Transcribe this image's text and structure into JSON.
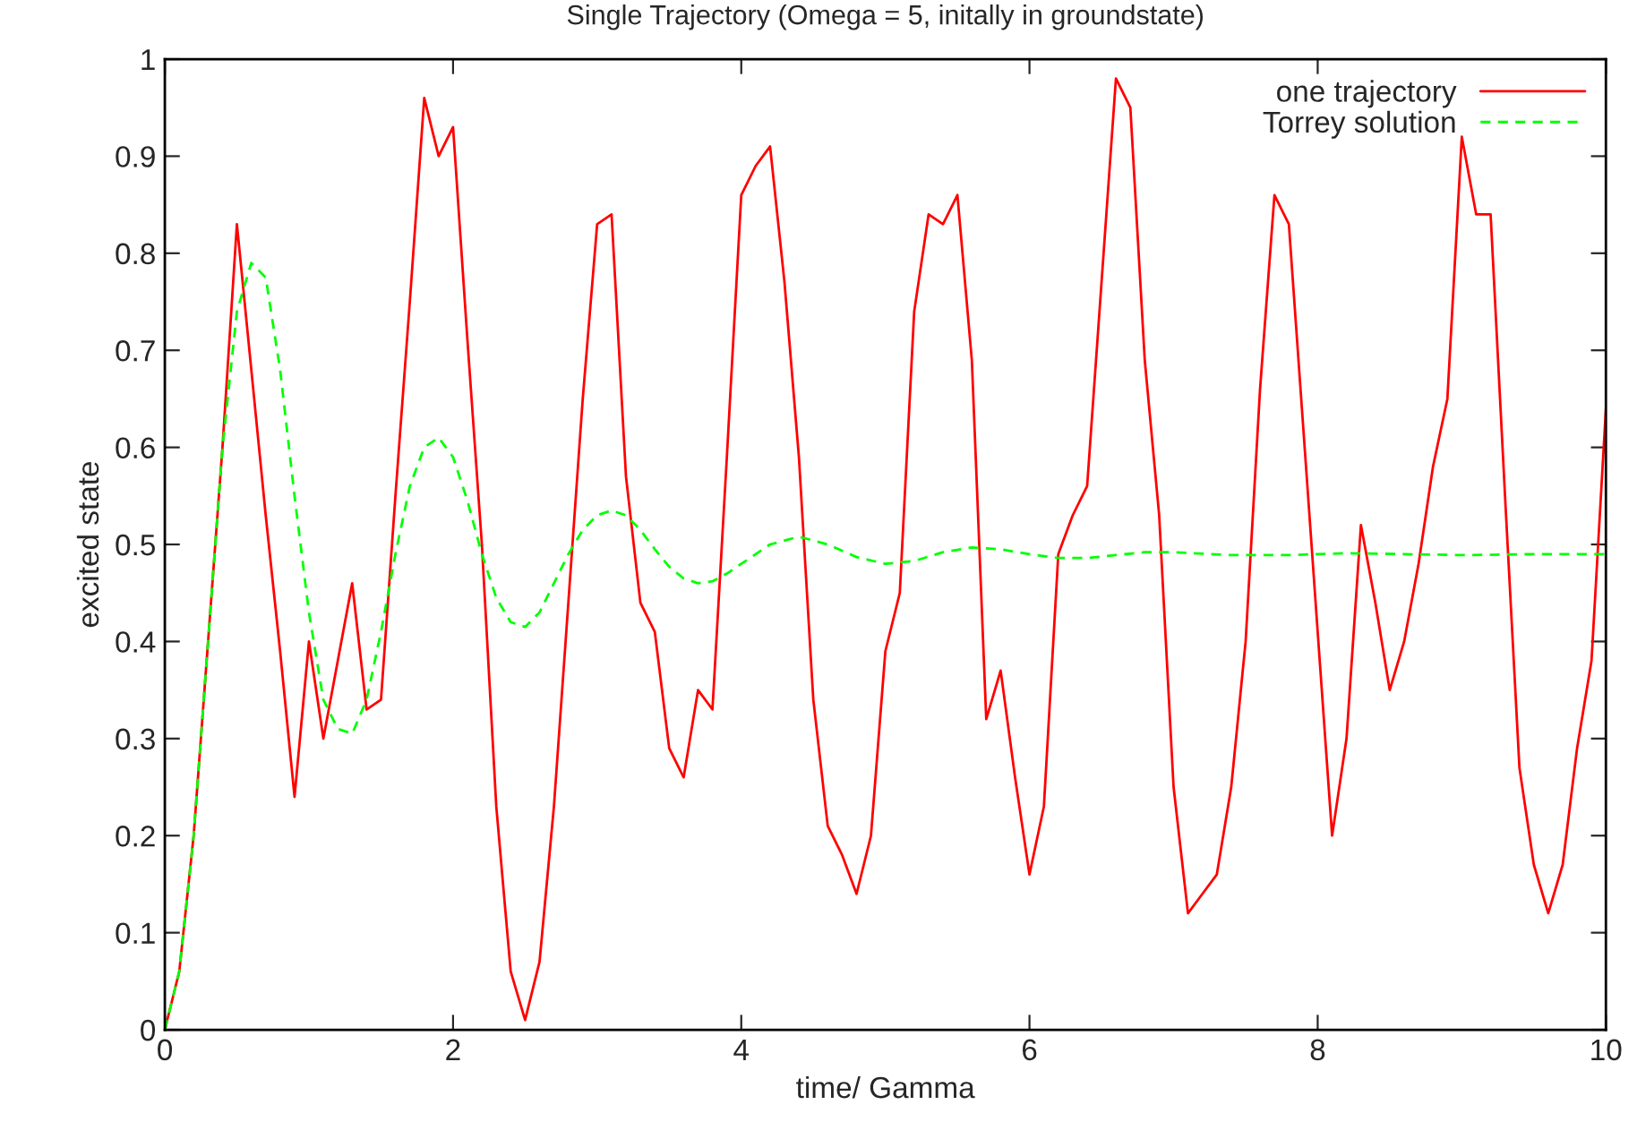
{
  "chart_data": {
    "type": "line",
    "title": "Single Trajectory (Omega = 5, initally in groundstate)",
    "xlabel": "time/ Gamma",
    "ylabel": "excited state",
    "xlim": [
      0,
      10
    ],
    "ylim": [
      0,
      1
    ],
    "xticks": [
      0,
      2,
      4,
      6,
      8,
      10
    ],
    "yticks": [
      0,
      0.1,
      0.2,
      0.3,
      0.4,
      0.5,
      0.6,
      0.7,
      0.8,
      0.9,
      1
    ],
    "legend": "top right",
    "grid": false,
    "series": [
      {
        "name": "one trajectory",
        "color": "#ff0000",
        "line_style": "solid",
        "x": [
          0,
          0.1,
          0.2,
          0.3,
          0.4,
          0.5,
          0.6,
          0.7,
          0.8,
          0.9,
          1.0,
          1.1,
          1.2,
          1.3,
          1.4,
          1.5,
          1.6,
          1.7,
          1.8,
          1.9,
          2.0,
          2.1,
          2.2,
          2.3,
          2.4,
          2.5,
          2.6,
          2.7,
          2.8,
          2.9,
          3.0,
          3.1,
          3.2,
          3.3,
          3.4,
          3.5,
          3.6,
          3.7,
          3.8,
          3.9,
          4.0,
          4.1,
          4.2,
          4.3,
          4.4,
          4.5,
          4.6,
          4.7,
          4.8,
          4.9,
          5.0,
          5.1,
          5.2,
          5.3,
          5.4,
          5.5,
          5.6,
          5.7,
          5.8,
          5.9,
          6.0,
          6.1,
          6.2,
          6.3,
          6.4,
          6.5,
          6.6,
          6.7,
          6.8,
          6.9,
          7.0,
          7.1,
          7.2,
          7.3,
          7.4,
          7.5,
          7.6,
          7.7,
          7.8,
          7.9,
          8.0,
          8.1,
          8.2,
          8.3,
          8.4,
          8.5,
          8.6,
          8.7,
          8.8,
          8.9,
          9.0,
          9.1,
          9.2,
          9.3,
          9.4,
          9.5,
          9.6,
          9.7,
          9.8,
          9.9,
          10.0
        ],
        "values": [
          0,
          0.06,
          0.2,
          0.4,
          0.6,
          0.83,
          0.68,
          0.53,
          0.39,
          0.24,
          0.4,
          0.3,
          0.38,
          0.46,
          0.33,
          0.34,
          0.55,
          0.75,
          0.96,
          0.9,
          0.93,
          0.71,
          0.5,
          0.23,
          0.06,
          0.01,
          0.07,
          0.23,
          0.44,
          0.65,
          0.83,
          0.84,
          0.57,
          0.44,
          0.41,
          0.29,
          0.26,
          0.35,
          0.33,
          0.59,
          0.86,
          0.89,
          0.91,
          0.77,
          0.59,
          0.34,
          0.21,
          0.18,
          0.14,
          0.2,
          0.39,
          0.45,
          0.74,
          0.84,
          0.83,
          0.86,
          0.69,
          0.32,
          0.37,
          0.26,
          0.16,
          0.23,
          0.49,
          0.53,
          0.56,
          0.77,
          0.98,
          0.95,
          0.69,
          0.53,
          0.25,
          0.12,
          0.14,
          0.16,
          0.25,
          0.4,
          0.66,
          0.86,
          0.83,
          0.62,
          0.41,
          0.2,
          0.3,
          0.52,
          0.44,
          0.35,
          0.4,
          0.48,
          0.58,
          0.65,
          0.92,
          0.84,
          0.84,
          0.55,
          0.27,
          0.17,
          0.12,
          0.17,
          0.29,
          0.38,
          0.64
        ]
      },
      {
        "name": "Torrey solution",
        "color": "#00ff00",
        "line_style": "dashed",
        "x": [
          0,
          0.1,
          0.2,
          0.3,
          0.4,
          0.5,
          0.6,
          0.7,
          0.8,
          0.9,
          1.0,
          1.1,
          1.2,
          1.3,
          1.4,
          1.5,
          1.6,
          1.7,
          1.8,
          1.9,
          2.0,
          2.1,
          2.2,
          2.3,
          2.4,
          2.5,
          2.6,
          2.7,
          2.8,
          2.9,
          3.0,
          3.1,
          3.2,
          3.3,
          3.4,
          3.5,
          3.6,
          3.7,
          3.8,
          3.9,
          4.0,
          4.2,
          4.4,
          4.6,
          4.8,
          5.0,
          5.2,
          5.4,
          5.6,
          5.8,
          6.0,
          6.2,
          6.4,
          6.6,
          6.8,
          7.0,
          7.4,
          7.8,
          8.2,
          8.6,
          9.0,
          9.5,
          10.0
        ],
        "values": [
          0,
          0.06,
          0.2,
          0.4,
          0.6,
          0.74,
          0.79,
          0.775,
          0.68,
          0.55,
          0.43,
          0.34,
          0.31,
          0.305,
          0.34,
          0.41,
          0.49,
          0.56,
          0.6,
          0.61,
          0.59,
          0.545,
          0.49,
          0.445,
          0.42,
          0.415,
          0.43,
          0.46,
          0.49,
          0.515,
          0.53,
          0.535,
          0.53,
          0.515,
          0.495,
          0.477,
          0.465,
          0.46,
          0.462,
          0.47,
          0.48,
          0.5,
          0.508,
          0.5,
          0.487,
          0.48,
          0.483,
          0.492,
          0.497,
          0.495,
          0.49,
          0.486,
          0.486,
          0.489,
          0.492,
          0.492,
          0.489,
          0.489,
          0.491,
          0.49,
          0.489,
          0.49,
          0.49
        ]
      }
    ]
  }
}
